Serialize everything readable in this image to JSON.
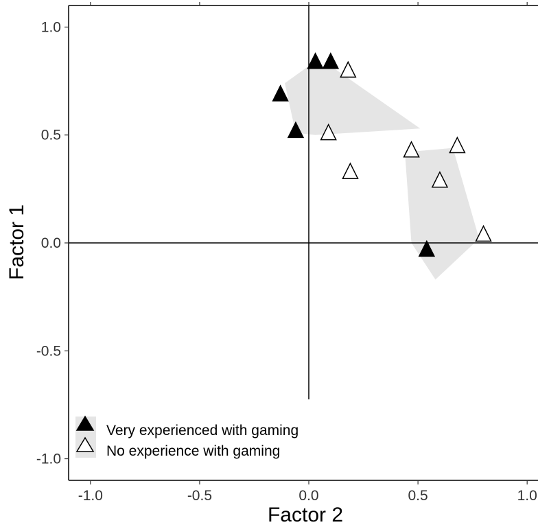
{
  "chart_data": {
    "type": "scatter",
    "xlabel": "Factor 2",
    "ylabel": "Factor 1",
    "xlim": [
      -1.1,
      1.1
    ],
    "ylim": [
      -1.1,
      1.1
    ],
    "x_ticks": [
      "-1.0",
      "-0.5",
      "0.0",
      "0.5",
      "1.0"
    ],
    "y_ticks": [
      "1.0",
      "0.5",
      "0.0",
      "-0.5",
      "-1.0"
    ],
    "grid": false,
    "reference_lines": {
      "x": 0,
      "y": 0
    },
    "legend_position": "bottom-left",
    "series": [
      {
        "name": "Very experienced with gaming",
        "marker": "filled-triangle",
        "color": "#000000",
        "points": [
          {
            "x": -0.13,
            "y": 0.69
          },
          {
            "x": 0.03,
            "y": 0.84
          },
          {
            "x": 0.1,
            "y": 0.84
          },
          {
            "x": -0.06,
            "y": 0.52
          },
          {
            "x": 0.54,
            "y": -0.03
          }
        ]
      },
      {
        "name": "No experience with gaming",
        "marker": "open-triangle",
        "color": "#ffffff",
        "points": [
          {
            "x": 0.18,
            "y": 0.8
          },
          {
            "x": 0.09,
            "y": 0.51
          },
          {
            "x": 0.19,
            "y": 0.33
          },
          {
            "x": 0.47,
            "y": 0.43
          },
          {
            "x": 0.68,
            "y": 0.45
          },
          {
            "x": 0.6,
            "y": 0.29
          },
          {
            "x": 0.8,
            "y": 0.04
          }
        ]
      }
    ],
    "cluster_regions": [
      {
        "fill": "#e5e5e5",
        "polygon": [
          [
            -0.11,
            0.74
          ],
          [
            0.0,
            0.82
          ],
          [
            0.1,
            0.82
          ],
          [
            0.51,
            0.53
          ],
          [
            0.03,
            0.5
          ],
          [
            -0.06,
            0.51
          ]
        ]
      },
      {
        "fill": "#e5e5e5",
        "polygon": [
          [
            0.44,
            0.42
          ],
          [
            0.66,
            0.44
          ],
          [
            0.78,
            0.02
          ],
          [
            0.58,
            -0.17
          ],
          [
            0.47,
            0.0
          ]
        ]
      }
    ]
  }
}
